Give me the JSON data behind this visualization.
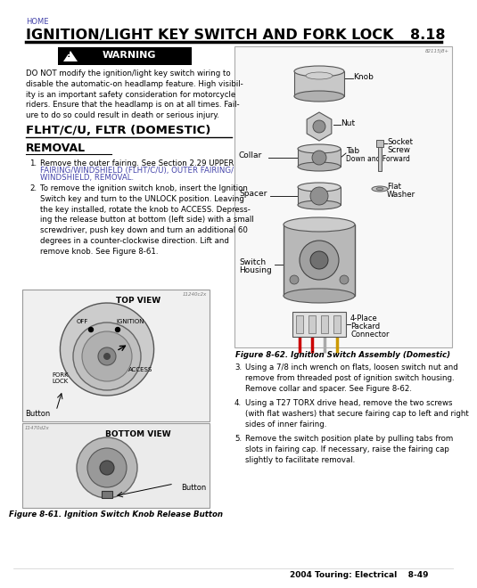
{
  "page_bg": "#ffffff",
  "title_home": "HOME",
  "title_main": "IGNITION/LIGHT KEY SWITCH AND FORK LOCK",
  "title_section": "8.18",
  "warning_bg": "#000000",
  "warning_title": "WARNING",
  "warning_body": "DO NOT modify the ignition/light key switch wiring to\ndisable the automatic-on headlamp feature. High visibil-\nity is an important safety consideration for motorcycle\nriders. Ensure that the headlamp is on at all times. Fail-\nure to do so could result in death or serious injury.",
  "section_title": "FLHT/C/U, FLTR (DOMESTIC)",
  "subsection_title": "REMOVAL",
  "item1_line1": "Remove the outer fairing. See Section 2.29 UPPER",
  "item1_line2": "FAIRING/WINDSHIELD (FLHT/C/U), OUTER FAIRING/",
  "item1_line3": "WINDSHIELD, REMOVAL.",
  "item2_text": "To remove the ignition switch knob, insert the Ignition\nSwitch key and turn to the UNLOCK position. Leaving\nthe key installed, rotate the knob to ACCESS. Depress-\ning the release button at bottom (left side) with a small\nscrewdriver, push key down and turn an additional 60\ndegrees in a counter-clockwise direction. Lift and\nremove knob. See Figure 8-61.",
  "fig861_caption": "Figure 8-61. Ignition Switch Knob Release Button",
  "fig862_caption": "Figure 8-62. Ignition Switch Assembly (Domestic)",
  "step3": "Using a 7/8 inch wrench on flats, loosen switch nut and\nremove from threaded post of ignition switch housing.\nRemove collar and spacer. See Figure 8-62.",
  "step4": "Using a T27 TORX drive head, remove the two screws\n(with flat washers) that secure fairing cap to left and right\nsides of inner fairing.",
  "step5": "Remove the switch position plate by pulling tabs from\nslots in fairing cap. If necessary, raise the fairing cap\nslightly to facilitate removal.",
  "footer_text": "2004 Touring: Electrical",
  "footer_page": "8-49",
  "link_color": "#4444aa",
  "text_color": "#000000",
  "partnum1": "11240c2x",
  "partnum2": "11470d2x",
  "partnum3": "82115j8+"
}
